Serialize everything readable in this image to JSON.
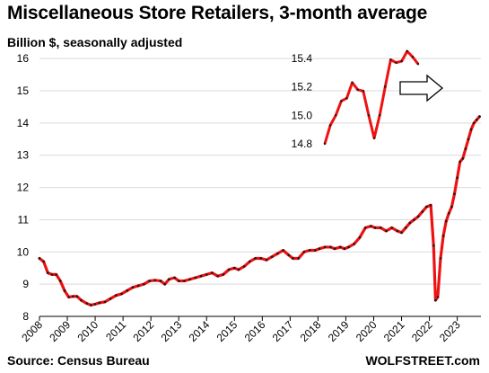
{
  "title": "Miscellaneous Store Retailers, 3-month average",
  "subtitle": "Billion $, seasonally adjusted",
  "source": "Source: Census Bureau",
  "watermark": "WOLFSTREET.com",
  "colors": {
    "line": "#ee1111",
    "points": "#1a1a1a",
    "grid": "#d9d9d9",
    "axis": "#000000"
  },
  "chart_data": [
    {
      "type": "line",
      "title": "Miscellaneous Store Retailers, 3-month average",
      "subtitle": "Billion $, seasonally adjusted",
      "xlabel": "",
      "ylabel": "",
      "xlim": [
        2008,
        2023.85
      ],
      "ylim": [
        8,
        16.2
      ],
      "yticks": [
        8,
        9,
        10,
        11,
        12,
        13,
        14,
        15,
        16
      ],
      "xticks": [
        "2008",
        "2009",
        "2010",
        "2011",
        "2012",
        "2013",
        "2014",
        "2015",
        "2016",
        "2017",
        "2018",
        "2019",
        "2020",
        "2021",
        "2022",
        "2023"
      ],
      "grid": "horizontal",
      "series": [
        {
          "name": "",
          "points": [
            [
              2008.0,
              9.8
            ],
            [
              2008.15,
              9.7
            ],
            [
              2008.3,
              9.35
            ],
            [
              2008.45,
              9.3
            ],
            [
              2008.6,
              9.3
            ],
            [
              2008.75,
              9.1
            ],
            [
              2008.9,
              8.8
            ],
            [
              2009.05,
              8.6
            ],
            [
              2009.2,
              8.62
            ],
            [
              2009.35,
              8.62
            ],
            [
              2009.5,
              8.5
            ],
            [
              2009.7,
              8.4
            ],
            [
              2009.85,
              8.35
            ],
            [
              2010.0,
              8.38
            ],
            [
              2010.15,
              8.42
            ],
            [
              2010.35,
              8.45
            ],
            [
              2010.55,
              8.55
            ],
            [
              2010.75,
              8.65
            ],
            [
              2010.95,
              8.7
            ],
            [
              2011.15,
              8.8
            ],
            [
              2011.35,
              8.9
            ],
            [
              2011.55,
              8.95
            ],
            [
              2011.75,
              9.0
            ],
            [
              2011.95,
              9.1
            ],
            [
              2012.15,
              9.12
            ],
            [
              2012.35,
              9.1
            ],
            [
              2012.5,
              9.0
            ],
            [
              2012.65,
              9.15
            ],
            [
              2012.85,
              9.2
            ],
            [
              2013.0,
              9.1
            ],
            [
              2013.2,
              9.1
            ],
            [
              2013.4,
              9.15
            ],
            [
              2013.6,
              9.2
            ],
            [
              2013.8,
              9.25
            ],
            [
              2014.0,
              9.3
            ],
            [
              2014.2,
              9.35
            ],
            [
              2014.4,
              9.25
            ],
            [
              2014.6,
              9.3
            ],
            [
              2014.8,
              9.45
            ],
            [
              2015.0,
              9.5
            ],
            [
              2015.15,
              9.45
            ],
            [
              2015.35,
              9.55
            ],
            [
              2015.55,
              9.7
            ],
            [
              2015.75,
              9.8
            ],
            [
              2015.95,
              9.8
            ],
            [
              2016.15,
              9.75
            ],
            [
              2016.35,
              9.85
            ],
            [
              2016.55,
              9.95
            ],
            [
              2016.75,
              10.05
            ],
            [
              2016.95,
              9.9
            ],
            [
              2017.1,
              9.8
            ],
            [
              2017.3,
              9.8
            ],
            [
              2017.5,
              10.0
            ],
            [
              2017.7,
              10.05
            ],
            [
              2017.9,
              10.05
            ],
            [
              2018.05,
              10.1
            ],
            [
              2018.25,
              10.15
            ],
            [
              2018.45,
              10.15
            ],
            [
              2018.6,
              10.1
            ],
            [
              2018.8,
              10.15
            ],
            [
              2018.95,
              10.1
            ],
            [
              2019.1,
              10.15
            ],
            [
              2019.3,
              10.25
            ],
            [
              2019.5,
              10.45
            ],
            [
              2019.7,
              10.75
            ],
            [
              2019.9,
              10.8
            ],
            [
              2020.05,
              10.75
            ],
            [
              2020.25,
              10.75
            ],
            [
              2020.45,
              10.65
            ],
            [
              2020.65,
              10.75
            ],
            [
              2020.85,
              10.65
            ],
            [
              2021.0,
              10.6
            ],
            [
              2021.15,
              10.75
            ],
            [
              2021.3,
              10.9
            ],
            [
              2021.45,
              11.0
            ],
            [
              2021.6,
              11.1
            ],
            [
              2021.75,
              11.25
            ],
            [
              2021.9,
              11.4
            ],
            [
              2022.05,
              11.45
            ],
            [
              2022.15,
              10.2
            ],
            [
              2022.22,
              8.5
            ],
            [
              2022.3,
              8.6
            ],
            [
              2022.4,
              9.8
            ],
            [
              2022.5,
              10.5
            ],
            [
              2022.6,
              10.95
            ],
            [
              2022.7,
              11.2
            ],
            [
              2022.8,
              11.4
            ],
            [
              2022.9,
              11.8
            ],
            [
              2023.0,
              12.3
            ],
            [
              2023.1,
              12.8
            ],
            [
              2023.2,
              12.9
            ],
            [
              2023.3,
              13.2
            ],
            [
              2023.4,
              13.5
            ],
            [
              2023.5,
              13.8
            ],
            [
              2023.6,
              14.0
            ],
            [
              2023.7,
              14.1
            ],
            [
              2023.8,
              14.2
            ]
          ]
        }
      ]
    },
    {
      "type": "line",
      "title": "",
      "note": "inset zoom",
      "ylim": [
        14.8,
        15.45
      ],
      "yticks": [
        14.8,
        15.0,
        15.2,
        15.4
      ],
      "series": [
        {
          "name": "",
          "values": [
            14.8,
            14.93,
            15.0,
            15.1,
            15.12,
            15.23,
            15.18,
            15.17,
            15.0,
            14.84,
            15.0,
            15.2,
            15.39,
            15.37,
            15.38,
            15.45,
            15.41,
            15.36
          ]
        }
      ]
    }
  ]
}
